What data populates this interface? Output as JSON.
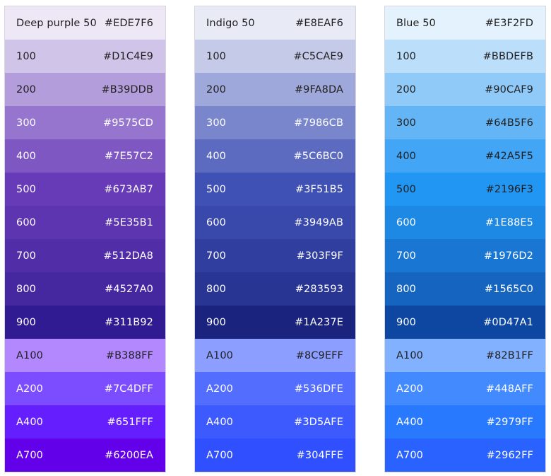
{
  "palettes": [
    {
      "name": "Deep purple",
      "swatches": [
        {
          "label": "Deep purple 50",
          "hex": "#EDE7F6",
          "bg": "#EDE7F6",
          "fg": "#212121"
        },
        {
          "label": "100",
          "hex": "#D1C4E9",
          "bg": "#D1C4E9",
          "fg": "#212121"
        },
        {
          "label": "200",
          "hex": "#B39DDB",
          "bg": "#B39DDB",
          "fg": "#212121"
        },
        {
          "label": "300",
          "hex": "#9575CD",
          "bg": "#9575CD",
          "fg": "#ffffff"
        },
        {
          "label": "400",
          "hex": "#7E57C2",
          "bg": "#7E57C2",
          "fg": "#ffffff"
        },
        {
          "label": "500",
          "hex": "#673AB7",
          "bg": "#673AB7",
          "fg": "#ffffff"
        },
        {
          "label": "600",
          "hex": "#5E35B1",
          "bg": "#5E35B1",
          "fg": "#ffffff"
        },
        {
          "label": "700",
          "hex": "#512DA8",
          "bg": "#512DA8",
          "fg": "#ffffff"
        },
        {
          "label": "800",
          "hex": "#4527A0",
          "bg": "#4527A0",
          "fg": "#ffffff"
        },
        {
          "label": "900",
          "hex": "#311B92",
          "bg": "#311B92",
          "fg": "#ffffff"
        },
        {
          "label": "A100",
          "hex": "#B388FF",
          "bg": "#B388FF",
          "fg": "#212121"
        },
        {
          "label": "A200",
          "hex": "#7C4DFF",
          "bg": "#7C4DFF",
          "fg": "#ffffff"
        },
        {
          "label": "A400",
          "hex": "#651FFF",
          "bg": "#651FFF",
          "fg": "#ffffff"
        },
        {
          "label": "A700",
          "hex": "#6200EA",
          "bg": "#6200EA",
          "fg": "#ffffff"
        }
      ]
    },
    {
      "name": "Indigo",
      "swatches": [
        {
          "label": "Indigo 50",
          "hex": "#E8EAF6",
          "bg": "#E8EAF6",
          "fg": "#212121"
        },
        {
          "label": "100",
          "hex": "#C5CAE9",
          "bg": "#C5CAE9",
          "fg": "#212121"
        },
        {
          "label": "200",
          "hex": "#9FA8DA",
          "bg": "#9FA8DA",
          "fg": "#212121"
        },
        {
          "label": "300",
          "hex": "#7986CB",
          "bg": "#7986CB",
          "fg": "#ffffff"
        },
        {
          "label": "400",
          "hex": "#5C6BC0",
          "bg": "#5C6BC0",
          "fg": "#ffffff"
        },
        {
          "label": "500",
          "hex": "#3F51B5",
          "bg": "#3F51B5",
          "fg": "#ffffff"
        },
        {
          "label": "600",
          "hex": "#3949AB",
          "bg": "#3949AB",
          "fg": "#ffffff"
        },
        {
          "label": "700",
          "hex": "#303F9F",
          "bg": "#303F9F",
          "fg": "#ffffff"
        },
        {
          "label": "800",
          "hex": "#283593",
          "bg": "#283593",
          "fg": "#ffffff"
        },
        {
          "label": "900",
          "hex": "#1A237E",
          "bg": "#1A237E",
          "fg": "#ffffff"
        },
        {
          "label": "A100",
          "hex": "#8C9EFF",
          "bg": "#8C9EFF",
          "fg": "#212121"
        },
        {
          "label": "A200",
          "hex": "#536DFE",
          "bg": "#536DFE",
          "fg": "#ffffff"
        },
        {
          "label": "A400",
          "hex": "#3D5AFE",
          "bg": "#3D5AFE",
          "fg": "#ffffff"
        },
        {
          "label": "A700",
          "hex": "#304FFE",
          "bg": "#304FFE",
          "fg": "#ffffff"
        }
      ]
    },
    {
      "name": "Blue",
      "swatches": [
        {
          "label": "Blue 50",
          "hex": "#E3F2FD",
          "bg": "#E3F2FD",
          "fg": "#212121"
        },
        {
          "label": "100",
          "hex": "#BBDEFB",
          "bg": "#BBDEFB",
          "fg": "#212121"
        },
        {
          "label": "200",
          "hex": "#90CAF9",
          "bg": "#90CAF9",
          "fg": "#212121"
        },
        {
          "label": "300",
          "hex": "#64B5F6",
          "bg": "#64B5F6",
          "fg": "#212121"
        },
        {
          "label": "400",
          "hex": "#42A5F5",
          "bg": "#42A5F5",
          "fg": "#212121"
        },
        {
          "label": "500",
          "hex": "#2196F3",
          "bg": "#2196F3",
          "fg": "#212121"
        },
        {
          "label": "600",
          "hex": "#1E88E5",
          "bg": "#1E88E5",
          "fg": "#ffffff"
        },
        {
          "label": "700",
          "hex": "#1976D2",
          "bg": "#1976D2",
          "fg": "#ffffff"
        },
        {
          "label": "800",
          "hex": "#1565C0",
          "bg": "#1565C0",
          "fg": "#ffffff"
        },
        {
          "label": "900",
          "hex": "#0D47A1",
          "bg": "#0D47A1",
          "fg": "#ffffff"
        },
        {
          "label": "A100",
          "hex": "#82B1FF",
          "bg": "#82B1FF",
          "fg": "#212121"
        },
        {
          "label": "A200",
          "hex": "#448AFF",
          "bg": "#448AFF",
          "fg": "#ffffff"
        },
        {
          "label": "A400",
          "hex": "#2979FF",
          "bg": "#2979FF",
          "fg": "#ffffff"
        },
        {
          "label": "A700",
          "hex": "#2962FF",
          "bg": "#2962FF",
          "fg": "#ffffff"
        }
      ]
    }
  ]
}
